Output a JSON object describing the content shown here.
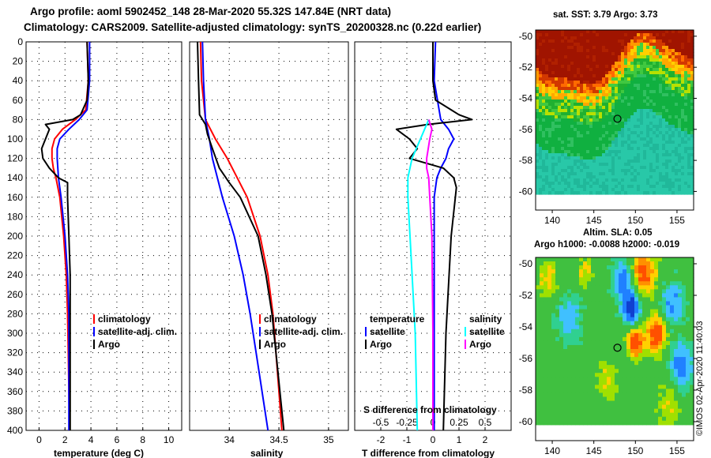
{
  "header": {
    "line1": "Argo profile: aoml 5902452_148 28-Mar-2020 55.32S 147.84E (NRT data)",
    "line2": "Climatology: CARS2009. Satellite-adjusted climatology: synTS_20200328.nc (0.22d earlier)"
  },
  "colors": {
    "climatology": "#ff0000",
    "satellite": "#0000ff",
    "argo": "#000000",
    "sat_salinity": "#00ffff",
    "argo_salinity": "#ff00ff"
  },
  "chart_data": [
    {
      "id": "temperature",
      "type": "line",
      "xlabel": "temperature (deg C)",
      "ylabel": "depth",
      "xlim": [
        -1,
        11
      ],
      "ylim": [
        400,
        0
      ],
      "xticks": [
        0,
        2,
        4,
        6,
        8,
        10
      ],
      "yticks": [
        0,
        20,
        40,
        60,
        80,
        100,
        120,
        140,
        160,
        180,
        200,
        220,
        240,
        260,
        280,
        300,
        320,
        340,
        360,
        380,
        400
      ],
      "legend": [
        {
          "label": "climatology",
          "color": "#ff0000"
        },
        {
          "label": "satellite-adj. clim.",
          "color": "#0000ff"
        },
        {
          "label": "Argo",
          "color": "#000000"
        }
      ],
      "series": [
        {
          "name": "climatology",
          "color": "#ff0000",
          "depth": [
            0,
            40,
            70,
            80,
            90,
            100,
            110,
            120,
            130,
            140,
            160,
            200,
            240,
            280,
            320,
            360,
            400
          ],
          "x": [
            3.7,
            3.8,
            3.6,
            2.8,
            1.8,
            1.2,
            1.0,
            1.0,
            1.1,
            1.3,
            1.6,
            1.9,
            2.1,
            2.2,
            2.25,
            2.3,
            2.35
          ]
        },
        {
          "name": "satellite-adj. clim.",
          "color": "#0000ff",
          "depth": [
            0,
            40,
            70,
            80,
            90,
            100,
            110,
            120,
            130,
            140,
            160,
            200,
            240,
            280,
            320,
            360,
            400
          ],
          "x": [
            3.9,
            3.9,
            3.7,
            3.1,
            2.3,
            1.6,
            1.4,
            1.4,
            1.45,
            1.5,
            1.7,
            2.0,
            2.2,
            2.3,
            2.3,
            2.3,
            2.3
          ]
        },
        {
          "name": "Argo",
          "color": "#000000",
          "depth": [
            0,
            40,
            60,
            75,
            80,
            85,
            90,
            100,
            110,
            120,
            130,
            140,
            145,
            160,
            200,
            240,
            280,
            320,
            360,
            400
          ],
          "x": [
            3.7,
            3.8,
            3.7,
            3.2,
            2.6,
            0.5,
            0.8,
            0.5,
            0.2,
            0.3,
            0.8,
            1.5,
            2.2,
            2.2,
            2.3,
            2.4,
            2.4,
            2.4,
            2.4,
            2.4
          ]
        }
      ]
    },
    {
      "id": "salinity",
      "type": "line",
      "xlabel": "salinity",
      "ylabel": "depth",
      "xlim": [
        33.6,
        35.2
      ],
      "ylim": [
        400,
        0
      ],
      "xticks": [
        34,
        34.5,
        35
      ],
      "legend": [
        {
          "label": "climatology",
          "color": "#ff0000"
        },
        {
          "label": "satellite-adj. clim.",
          "color": "#0000ff"
        },
        {
          "label": "Argo",
          "color": "#000000"
        }
      ],
      "series": [
        {
          "name": "climatology",
          "color": "#ff0000",
          "depth": [
            0,
            40,
            80,
            100,
            120,
            140,
            160,
            200,
            240,
            280,
            320,
            360,
            400
          ],
          "x": [
            33.71,
            33.72,
            33.76,
            33.86,
            33.98,
            34.08,
            34.18,
            34.31,
            34.39,
            34.44,
            34.47,
            34.5,
            34.53
          ]
        },
        {
          "name": "satellite-adj. clim.",
          "color": "#0000ff",
          "depth": [
            0,
            40,
            80,
            100,
            120,
            140,
            160,
            200,
            240,
            280,
            320,
            360,
            400
          ],
          "x": [
            33.73,
            33.74,
            33.76,
            33.8,
            33.83,
            33.88,
            33.93,
            34.05,
            34.14,
            34.21,
            34.27,
            34.33,
            34.39
          ]
        },
        {
          "name": "Argo",
          "color": "#000000",
          "depth": [
            0,
            40,
            75,
            85,
            95,
            110,
            130,
            145,
            160,
            200,
            240,
            280,
            320,
            360,
            400
          ],
          "x": [
            33.68,
            33.69,
            33.7,
            33.76,
            33.78,
            33.83,
            33.9,
            34.0,
            34.11,
            34.29,
            34.37,
            34.43,
            34.47,
            34.51,
            34.55
          ]
        }
      ]
    },
    {
      "id": "differences",
      "type": "line",
      "xlabel": "T difference from climatology",
      "secondary_xlabel": "S difference from climatology",
      "ylabel": "depth",
      "xlim": [
        -3,
        3
      ],
      "secondary_xlim": [
        -0.75,
        0.75
      ],
      "ylim": [
        400,
        0
      ],
      "xticks": [
        -2,
        -1,
        0,
        1,
        2
      ],
      "secondary_xticks": [
        -0.5,
        -0.25,
        0,
        0.25,
        0.5
      ],
      "legend_temperature": {
        "heading": "temperature",
        "items": [
          {
            "label": "satellite",
            "color": "#0000ff"
          },
          {
            "label": "Argo",
            "color": "#000000"
          }
        ]
      },
      "legend_salinity": {
        "heading": "salinity",
        "items": [
          {
            "label": "satellite",
            "color": "#00ffff"
          },
          {
            "label": "Argo",
            "color": "#ff00ff"
          }
        ]
      },
      "series": [
        {
          "name": "T satellite",
          "color": "#0000ff",
          "depth": [
            0,
            40,
            80,
            90,
            100,
            110,
            120,
            130,
            140,
            160,
            200,
            300,
            400
          ],
          "x": [
            0.1,
            0.05,
            0.3,
            0.6,
            0.8,
            0.6,
            0.5,
            0.3,
            0.15,
            0.05,
            0.05,
            0.05,
            0.05
          ]
        },
        {
          "name": "T Argo",
          "color": "#000000",
          "depth": [
            0,
            40,
            60,
            70,
            75,
            80,
            85,
            90,
            100,
            110,
            120,
            130,
            140,
            150,
            200,
            300,
            400
          ],
          "x": [
            0.0,
            0.0,
            0.1,
            0.7,
            1.0,
            1.5,
            -0.2,
            -1.4,
            -0.9,
            -0.6,
            -0.9,
            0.4,
            0.8,
            0.9,
            0.7,
            0.5,
            0.4
          ]
        },
        {
          "name": "S satellite",
          "color": "#00ffff",
          "depth": [
            80,
            100,
            120,
            140,
            160,
            200,
            300,
            400
          ],
          "x": [
            -0.04,
            -0.12,
            -0.2,
            -0.24,
            -0.24,
            -0.22,
            -0.17,
            -0.15
          ]
        },
        {
          "name": "S Argo",
          "color": "#ff00ff",
          "depth": [
            80,
            90,
            100,
            120,
            130,
            140,
            160,
            200,
            300,
            400
          ],
          "x": [
            -0.04,
            -0.01,
            -0.03,
            -0.06,
            -0.06,
            -0.04,
            -0.03,
            -0.01,
            0.0,
            0.0
          ]
        }
      ]
    }
  ],
  "maps": {
    "sst": {
      "title": "sat. SST: 3.79 Argo: 3.73",
      "lon_ticks": [
        "140",
        "145",
        "150",
        "155"
      ],
      "lat_ticks": [
        "-50",
        "-52",
        "-54",
        "-56",
        "-58",
        "-60"
      ],
      "marker": {
        "lon": 147.84,
        "lat": -55.32
      }
    },
    "sla": {
      "title1": "Altim. SLA: 0.05",
      "title2": "Argo h1000: -0.0088 h2000: -0.019",
      "lon_ticks": [
        "140",
        "145",
        "150",
        "155"
      ],
      "lat_ticks": [
        "-50",
        "-52",
        "-54",
        "-56",
        "-58",
        "-60"
      ],
      "marker": {
        "lon": 147.84,
        "lat": -55.32
      }
    },
    "lon_range": [
      138,
      157
    ],
    "lat_range": [
      -61.2,
      -49.6
    ]
  },
  "credit": "©IMOS 02-Apr-2020 11:40:03"
}
